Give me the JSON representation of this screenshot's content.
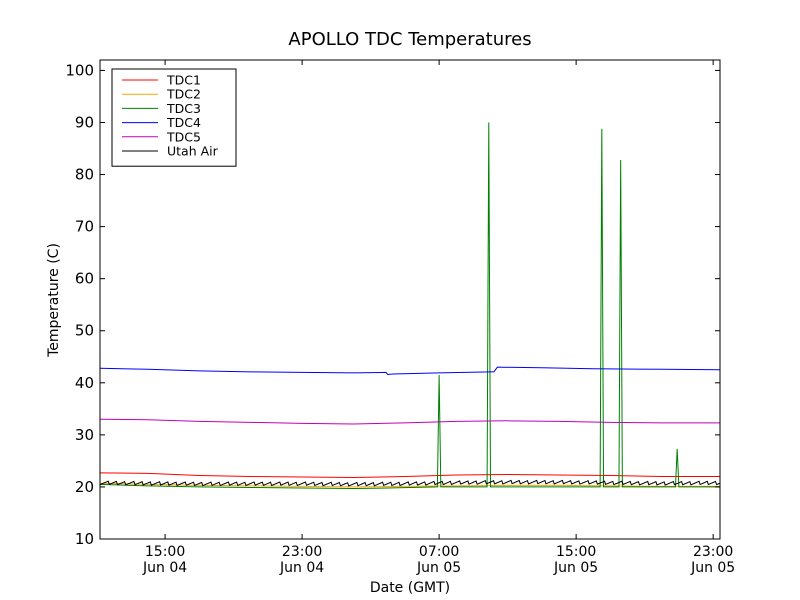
{
  "chart_data": {
    "type": "line",
    "title": "APOLLO TDC Temperatures",
    "xlabel": "Date (GMT)",
    "ylabel": "Temperature (C)",
    "ylim": [
      10,
      102
    ],
    "xlim_hours": [
      11.2,
      47.4
    ],
    "grid": false,
    "legend_position": "top-left",
    "y_ticks": [
      10,
      20,
      30,
      40,
      50,
      60,
      70,
      80,
      90,
      100
    ],
    "x_ticks": [
      {
        "hour": 15,
        "time": "15:00",
        "date": "Jun 04"
      },
      {
        "hour": 23,
        "time": "23:00",
        "date": "Jun 04"
      },
      {
        "hour": 31,
        "time": "07:00",
        "date": "Jun 05"
      },
      {
        "hour": 39,
        "time": "15:00",
        "date": "Jun 05"
      },
      {
        "hour": 47,
        "time": "23:00",
        "date": "Jun 05"
      }
    ],
    "series": [
      {
        "name": "TDC1",
        "color": "#ff0000",
        "points": [
          [
            11.2,
            22.7
          ],
          [
            14,
            22.6
          ],
          [
            17,
            22.2
          ],
          [
            20,
            22.0
          ],
          [
            23,
            21.9
          ],
          [
            26,
            21.8
          ],
          [
            29,
            22.0
          ],
          [
            32,
            22.3
          ],
          [
            35,
            22.4
          ],
          [
            38,
            22.3
          ],
          [
            41,
            22.2
          ],
          [
            44,
            22.0
          ],
          [
            47.4,
            22.0
          ]
        ]
      },
      {
        "name": "TDC2",
        "color": "#ffa500",
        "points": [
          [
            11.2,
            20.7
          ],
          [
            14,
            20.5
          ],
          [
            17,
            20.3
          ],
          [
            20,
            20.2
          ],
          [
            23,
            20.1
          ],
          [
            26,
            20.0
          ],
          [
            29,
            20.1
          ],
          [
            32,
            20.2
          ],
          [
            35,
            20.3
          ],
          [
            38,
            20.3
          ],
          [
            41,
            20.2
          ],
          [
            44,
            20.1
          ],
          [
            47.4,
            20.1
          ]
        ]
      },
      {
        "name": "TDC3",
        "color": "#008000",
        "points": [
          [
            11.2,
            20.5
          ],
          [
            14,
            20.2
          ],
          [
            17,
            20.0
          ],
          [
            20,
            19.9
          ],
          [
            23,
            19.8
          ],
          [
            26,
            19.7
          ],
          [
            28,
            19.8
          ],
          [
            30.9,
            20.0
          ],
          [
            31.0,
            41.5
          ],
          [
            31.1,
            20.0
          ],
          [
            33.8,
            20.0
          ],
          [
            33.9,
            90.0
          ],
          [
            34.0,
            20.0
          ],
          [
            40.4,
            20.0
          ],
          [
            40.5,
            88.8
          ],
          [
            40.6,
            20.0
          ],
          [
            41.5,
            20.0
          ],
          [
            41.6,
            82.8
          ],
          [
            41.7,
            20.0
          ],
          [
            44.8,
            20.0
          ],
          [
            44.9,
            27.3
          ],
          [
            45.0,
            20.0
          ],
          [
            47.4,
            20.0
          ]
        ]
      },
      {
        "name": "TDC4",
        "color": "#0000ff",
        "points": [
          [
            11.2,
            42.8
          ],
          [
            14,
            42.6
          ],
          [
            17,
            42.3
          ],
          [
            20,
            42.1
          ],
          [
            23,
            42.0
          ],
          [
            26,
            41.9
          ],
          [
            27.9,
            42.0
          ],
          [
            28.0,
            41.6
          ],
          [
            28.3,
            41.7
          ],
          [
            31,
            41.9
          ],
          [
            34,
            42.1
          ],
          [
            34.2,
            42.1
          ],
          [
            34.4,
            43.0
          ],
          [
            37,
            42.9
          ],
          [
            40,
            42.7
          ],
          [
            44,
            42.6
          ],
          [
            47.4,
            42.5
          ]
        ]
      },
      {
        "name": "TDC5",
        "color": "#bf00bf",
        "points": [
          [
            11.2,
            33.0
          ],
          [
            14,
            32.9
          ],
          [
            17,
            32.6
          ],
          [
            20,
            32.4
          ],
          [
            23,
            32.2
          ],
          [
            26,
            32.1
          ],
          [
            29,
            32.3
          ],
          [
            32,
            32.6
          ],
          [
            35,
            32.7
          ],
          [
            38,
            32.6
          ],
          [
            41,
            32.4
          ],
          [
            44,
            32.3
          ],
          [
            47.4,
            32.3
          ]
        ]
      },
      {
        "name": "Utah Air",
        "color": "#000000",
        "oscillating": true,
        "points": [
          [
            11.2,
            20.8
          ],
          [
            14,
            20.7
          ],
          [
            17,
            20.6
          ],
          [
            20,
            20.6
          ],
          [
            23,
            20.6
          ],
          [
            26,
            20.5
          ],
          [
            29,
            20.6
          ],
          [
            32,
            20.8
          ],
          [
            35,
            20.9
          ],
          [
            38,
            20.9
          ],
          [
            41,
            20.8
          ],
          [
            44,
            20.7
          ],
          [
            47.4,
            20.8
          ]
        ]
      }
    ]
  }
}
